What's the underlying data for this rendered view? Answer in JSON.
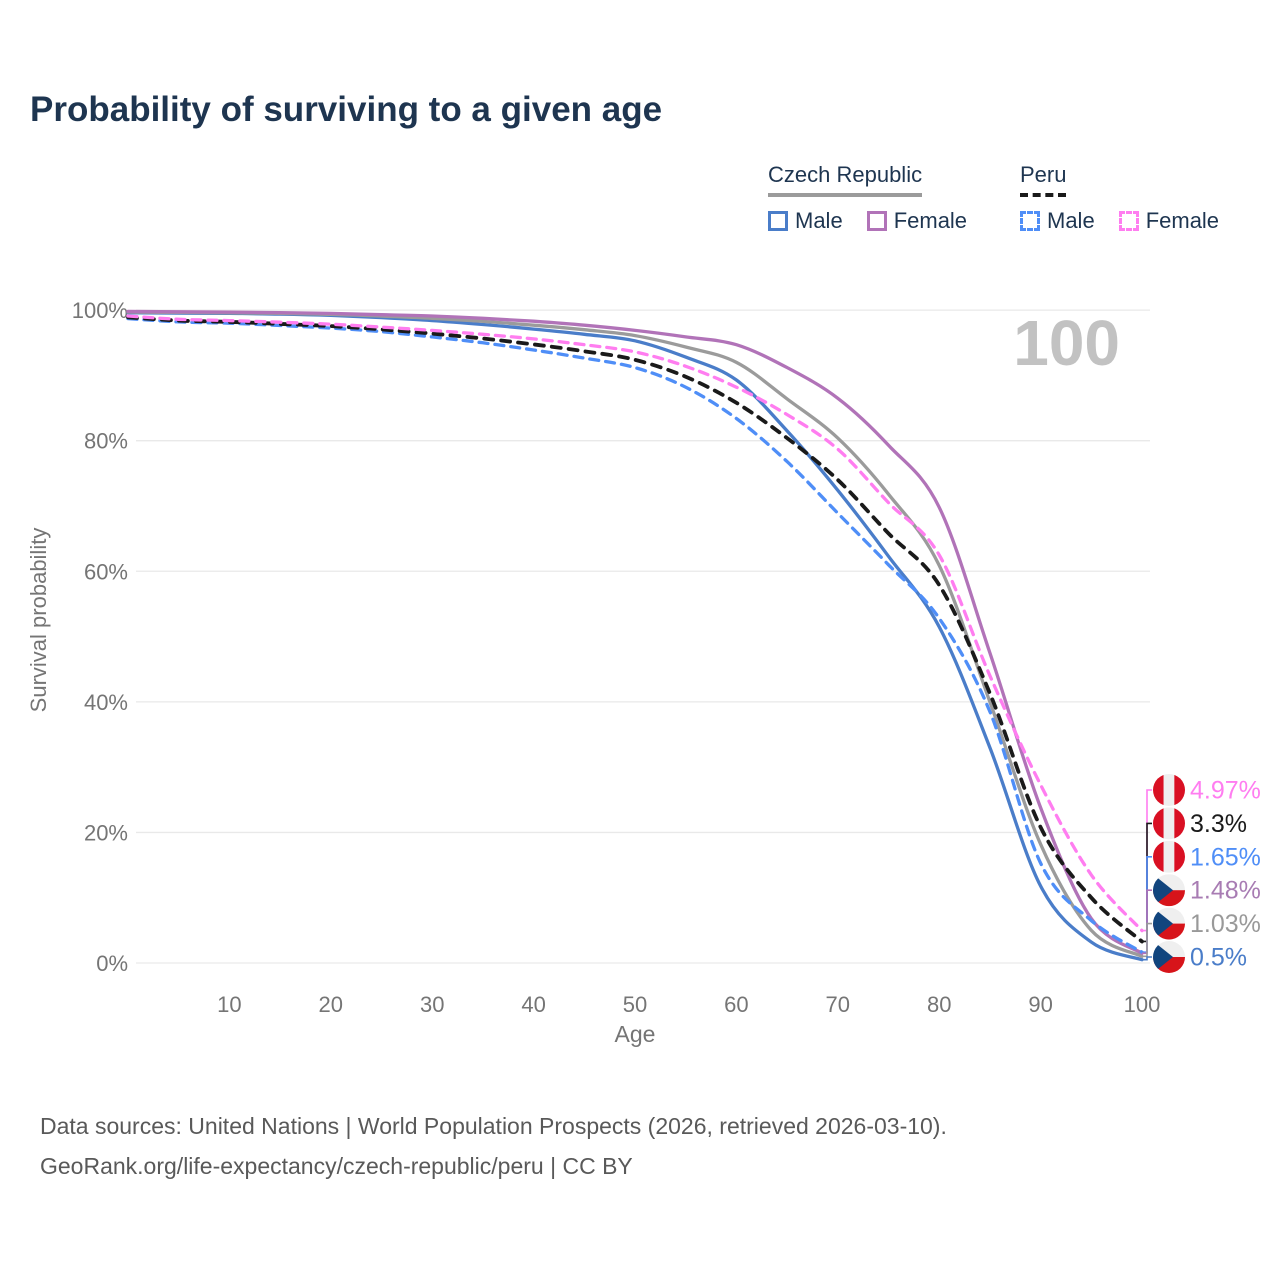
{
  "title": "Probability of surviving to a given age",
  "legend": {
    "groups": [
      {
        "label": "Czech Republic",
        "line_style": "solid",
        "underline_color": "#9b9b9b",
        "items": [
          {
            "label": "Male",
            "color": "#4a7dc9",
            "dashed": false
          },
          {
            "label": "Female",
            "color": "#b173b8",
            "dashed": false
          }
        ]
      },
      {
        "label": "Peru",
        "line_style": "dashed",
        "underline_color": "#1a1a1a",
        "items": [
          {
            "label": "Male",
            "color": "#4f8ef7",
            "dashed": true
          },
          {
            "label": "Female",
            "color": "#ff7df0",
            "dashed": true
          }
        ]
      }
    ]
  },
  "chart_data": {
    "type": "line",
    "title": "Probability of surviving to a given age",
    "xlabel": "Age",
    "ylabel": "Survival probability",
    "xlim": [
      0,
      100
    ],
    "ylim": [
      0,
      100
    ],
    "grid": true,
    "watermark": "100",
    "x_ticks": [
      10,
      20,
      30,
      40,
      50,
      60,
      70,
      80,
      90,
      100
    ],
    "y_ticks": [
      0,
      20,
      40,
      60,
      80,
      100
    ],
    "y_tick_suffix": "%",
    "x": [
      0,
      5,
      10,
      15,
      20,
      25,
      30,
      35,
      40,
      45,
      50,
      55,
      60,
      65,
      70,
      75,
      80,
      85,
      90,
      95,
      100
    ],
    "series": [
      {
        "key": "czech-male",
        "name": "Czech Republic Male",
        "color": "#4a7dc9",
        "dashed": false,
        "flag": "cz",
        "end_label": "0.5%",
        "end_label_color": "#4a7dc9",
        "values": [
          99.6,
          99.55,
          99.5,
          99.4,
          99.2,
          98.85,
          98.4,
          97.8,
          97.1,
          96.3,
          95.3,
          92.8,
          89.3,
          81.5,
          72.4,
          62.3,
          51.5,
          33.0,
          11.8,
          3.2,
          0.5
        ]
      },
      {
        "key": "czech-total",
        "name": "Czech Republic (both sexes)",
        "color": "#9b9b9b",
        "dashed": false,
        "flag": "cz",
        "end_label": "1.03%",
        "end_label_color": "#999999",
        "values": [
          99.7,
          99.65,
          99.6,
          99.5,
          99.35,
          99.08,
          98.75,
          98.28,
          97.7,
          97.0,
          96.1,
          94.35,
          92.0,
          86.4,
          80.4,
          71.8,
          60.9,
          40.0,
          18.2,
          5.0,
          1.03
        ]
      },
      {
        "key": "czech-female",
        "name": "Czech Republic Female",
        "color": "#b173b8",
        "dashed": false,
        "flag": "cz",
        "end_label": "1.48%",
        "end_label_color": "#a87cb3",
        "values": [
          99.8,
          99.75,
          99.7,
          99.62,
          99.5,
          99.3,
          99.1,
          98.75,
          98.3,
          97.7,
          96.9,
          95.9,
          94.7,
          91.2,
          86.5,
          79.3,
          69.8,
          47.5,
          23.8,
          6.8,
          1.48
        ]
      },
      {
        "key": "peru-male",
        "name": "Peru Male",
        "color": "#4f8ef7",
        "dashed": true,
        "flag": "peru",
        "end_label": "1.65%",
        "end_label_color": "#4f8ef7",
        "values": [
          98.7,
          98.2,
          98.0,
          97.65,
          97.25,
          96.7,
          95.9,
          95.0,
          93.9,
          92.65,
          91.2,
          88.2,
          83.4,
          76.8,
          68.9,
          61.0,
          52.8,
          38.5,
          15.3,
          6.5,
          1.65
        ]
      },
      {
        "key": "peru-total",
        "name": "Peru (both sexes)",
        "color": "#1a1a1a",
        "dashed": true,
        "flag": "peru",
        "end_label": "3.3%",
        "end_label_color": "#1a1a1a",
        "values": [
          98.9,
          98.4,
          98.2,
          97.9,
          97.55,
          97.05,
          96.4,
          95.65,
          94.75,
          93.7,
          92.4,
          89.8,
          85.8,
          80.4,
          74.0,
          65.8,
          57.9,
          41.3,
          20.8,
          10.0,
          3.3
        ]
      },
      {
        "key": "peru-female",
        "name": "Peru Female",
        "color": "#ff7df0",
        "dashed": true,
        "flag": "peru",
        "end_label": "4.97%",
        "end_label_color": "#ff7df0",
        "values": [
          99.1,
          98.6,
          98.4,
          98.15,
          97.85,
          97.4,
          96.9,
          96.3,
          95.6,
          94.7,
          93.6,
          91.4,
          88.2,
          84.0,
          78.7,
          70.5,
          62.5,
          44.0,
          27.3,
          13.5,
          4.97
        ]
      }
    ],
    "flag_colors": {
      "peru_red": "#d91023",
      "peru_white": "#efefef",
      "cz_white": "#efefef",
      "cz_red": "#d7141a",
      "cz_blue": "#11457e"
    }
  },
  "style": {
    "axis_text_color": "#757575",
    "grid_color": "#e9e9e9",
    "watermark_color": "#c2c2c2"
  },
  "source": {
    "line1": "Data sources: United Nations | World Population Prospects (2026, retrieved 2026-03-10).",
    "line2": "GeoRank.org/life-expectancy/czech-republic/peru | CC BY"
  }
}
